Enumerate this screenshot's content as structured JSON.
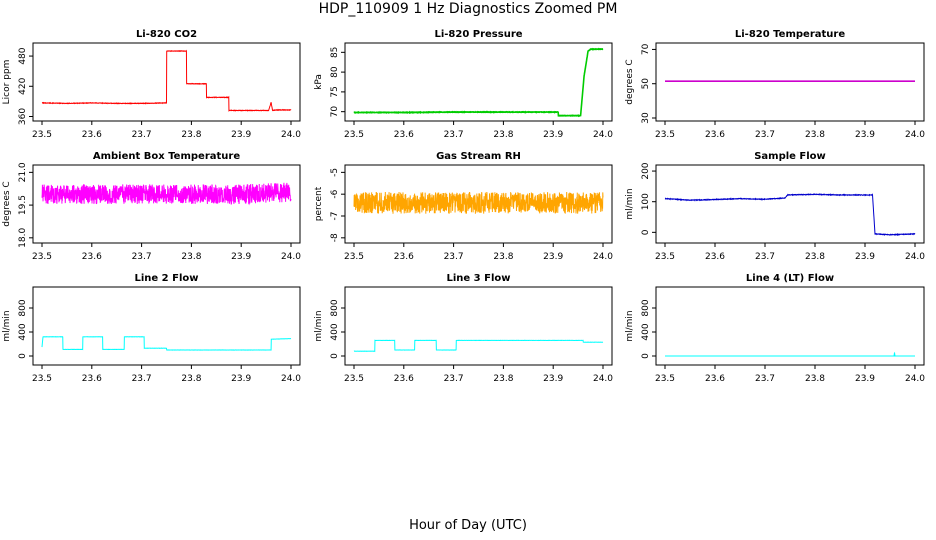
{
  "figure": {
    "title": "HDP_110909  1 Hz Diagnostics Zoomed PM",
    "xlabel": "Hour of Day (UTC)"
  },
  "chart_data": [
    {
      "type": "line",
      "title": "Li-820 CO2",
      "ylabel": "Licor ppm",
      "color": "#ff0000",
      "xlim": [
        23.5,
        24.0
      ],
      "xticks": [
        23.5,
        23.6,
        23.7,
        23.8,
        23.9,
        24.0
      ],
      "ylim": [
        357,
        500
      ],
      "yticks": [
        360,
        420,
        480
      ],
      "x": [
        23.5,
        23.55,
        23.6,
        23.65,
        23.7,
        23.75,
        23.75,
        23.79,
        23.79,
        23.83,
        23.83,
        23.875,
        23.875,
        23.955,
        23.96,
        23.963,
        23.97,
        24.0
      ],
      "y": [
        387,
        386,
        387,
        386,
        386,
        387,
        490,
        490,
        425,
        425,
        398,
        398,
        372,
        372,
        388,
        372,
        373,
        373
      ],
      "noise": 1
    },
    {
      "type": "line",
      "title": "Li-820 Pressure",
      "ylabel": "kPa",
      "color": "#00cc00",
      "xlim": [
        23.5,
        24.0
      ],
      "xticks": [
        23.5,
        23.6,
        23.7,
        23.8,
        23.9,
        24.0
      ],
      "ylim": [
        68.4,
        86.6
      ],
      "yticks": [
        70,
        75,
        80,
        85
      ],
      "x": [
        23.5,
        23.6,
        23.7,
        23.8,
        23.91,
        23.91,
        23.955,
        23.962,
        23.97,
        23.975,
        24.0
      ],
      "y": [
        69.8,
        69.8,
        69.9,
        69.9,
        69.9,
        69.0,
        69.0,
        79.0,
        85.3,
        85.8,
        85.8
      ],
      "noise": 0.1
    },
    {
      "type": "line",
      "title": "Li-820 Temperature",
      "ylabel": "degrees C",
      "color": "#cc00cc",
      "xlim": [
        23.5,
        24.0
      ],
      "xticks": [
        23.5,
        23.6,
        23.7,
        23.8,
        23.9,
        24.0
      ],
      "ylim": [
        30,
        72
      ],
      "yticks": [
        30,
        50,
        70
      ],
      "x": [
        23.5,
        24.0
      ],
      "y": [
        51.5,
        51.5
      ],
      "noise": 0
    },
    {
      "type": "line",
      "title": "Ambient Box Temperature",
      "ylabel": "degrees C",
      "color": "#ff00ff",
      "xlim": [
        23.5,
        24.0
      ],
      "xticks": [
        23.5,
        23.6,
        23.7,
        23.8,
        23.9,
        24.0
      ],
      "ylim": [
        17.9,
        21.2
      ],
      "yticks": [
        18.0,
        19.5,
        21.0
      ],
      "x": [
        23.5,
        23.6,
        23.7,
        23.8,
        23.9,
        24.0
      ],
      "y": [
        20.0,
        20.0,
        20.0,
        20.0,
        20.0,
        20.1
      ],
      "noise": 0.9
    },
    {
      "type": "line",
      "title": "Gas Stream RH",
      "ylabel": "percent",
      "color": "#ffa500",
      "xlim": [
        23.5,
        24.0
      ],
      "xticks": [
        23.5,
        23.6,
        23.7,
        23.8,
        23.9,
        24.0
      ],
      "ylim": [
        -8.1,
        -4.8
      ],
      "yticks": [
        -8.0,
        -7.0,
        -6.0,
        -5.0
      ],
      "x": [
        23.5,
        23.6,
        23.7,
        23.8,
        23.9,
        24.0
      ],
      "y": [
        -6.4,
        -6.4,
        -6.4,
        -6.4,
        -6.4,
        -6.4
      ],
      "noise": 1.0
    },
    {
      "type": "line",
      "title": "Sample Flow",
      "ylabel": "ml/min",
      "color": "#0000cc",
      "xlim": [
        23.5,
        24.0
      ],
      "xticks": [
        23.5,
        23.6,
        23.7,
        23.8,
        23.9,
        24.0
      ],
      "ylim": [
        -25,
        210
      ],
      "yticks": [
        0,
        100,
        200
      ],
      "x": [
        23.5,
        23.55,
        23.6,
        23.65,
        23.7,
        23.74,
        23.745,
        23.8,
        23.85,
        23.915,
        23.92,
        23.95,
        24.0
      ],
      "y": [
        110,
        105,
        107,
        110,
        108,
        112,
        122,
        124,
        122,
        122,
        -5,
        -8,
        -5
      ],
      "noise": 2
    },
    {
      "type": "line",
      "title": "Line 2 Flow",
      "ylabel": "ml/min",
      "color": "#00ffff",
      "xlim": [
        23.5,
        24.0
      ],
      "xticks": [
        23.5,
        23.6,
        23.7,
        23.8,
        23.9,
        24.0
      ],
      "ylim": [
        -100,
        1100
      ],
      "yticks": [
        0,
        400,
        800
      ],
      "x": [
        23.5,
        23.502,
        23.542,
        23.542,
        23.582,
        23.582,
        23.622,
        23.622,
        23.665,
        23.665,
        23.705,
        23.705,
        23.75,
        23.75,
        23.96,
        23.96,
        24.0
      ],
      "y": [
        150,
        320,
        320,
        110,
        110,
        320,
        320,
        110,
        110,
        320,
        320,
        130,
        130,
        100,
        100,
        280,
        290
      ],
      "noise": 3
    },
    {
      "type": "line",
      "title": "Line 3 Flow",
      "ylabel": "ml/min",
      "color": "#00ffff",
      "xlim": [
        23.5,
        24.0
      ],
      "xticks": [
        23.5,
        23.6,
        23.7,
        23.8,
        23.9,
        24.0
      ],
      "ylim": [
        -100,
        1100
      ],
      "yticks": [
        0,
        400,
        800
      ],
      "x": [
        23.5,
        23.5,
        23.502,
        23.542,
        23.542,
        23.582,
        23.582,
        23.622,
        23.622,
        23.665,
        23.665,
        23.705,
        23.705,
        23.96,
        23.96,
        24.0
      ],
      "y": [
        250,
        80,
        80,
        80,
        260,
        260,
        100,
        100,
        260,
        260,
        100,
        100,
        260,
        260,
        230,
        230
      ],
      "noise": 3
    },
    {
      "type": "line",
      "title": "Line 4 (LT) Flow",
      "ylabel": "ml/min",
      "color": "#00ffff",
      "xlim": [
        23.5,
        24.0
      ],
      "xticks": [
        23.5,
        23.6,
        23.7,
        23.8,
        23.9,
        24.0
      ],
      "ylim": [
        -100,
        1100
      ],
      "yticks": [
        0,
        400,
        800
      ],
      "x": [
        23.5,
        23.958,
        23.959,
        23.96,
        24.0
      ],
      "y": [
        0,
        0,
        60,
        0,
        0
      ],
      "noise": 1
    }
  ]
}
